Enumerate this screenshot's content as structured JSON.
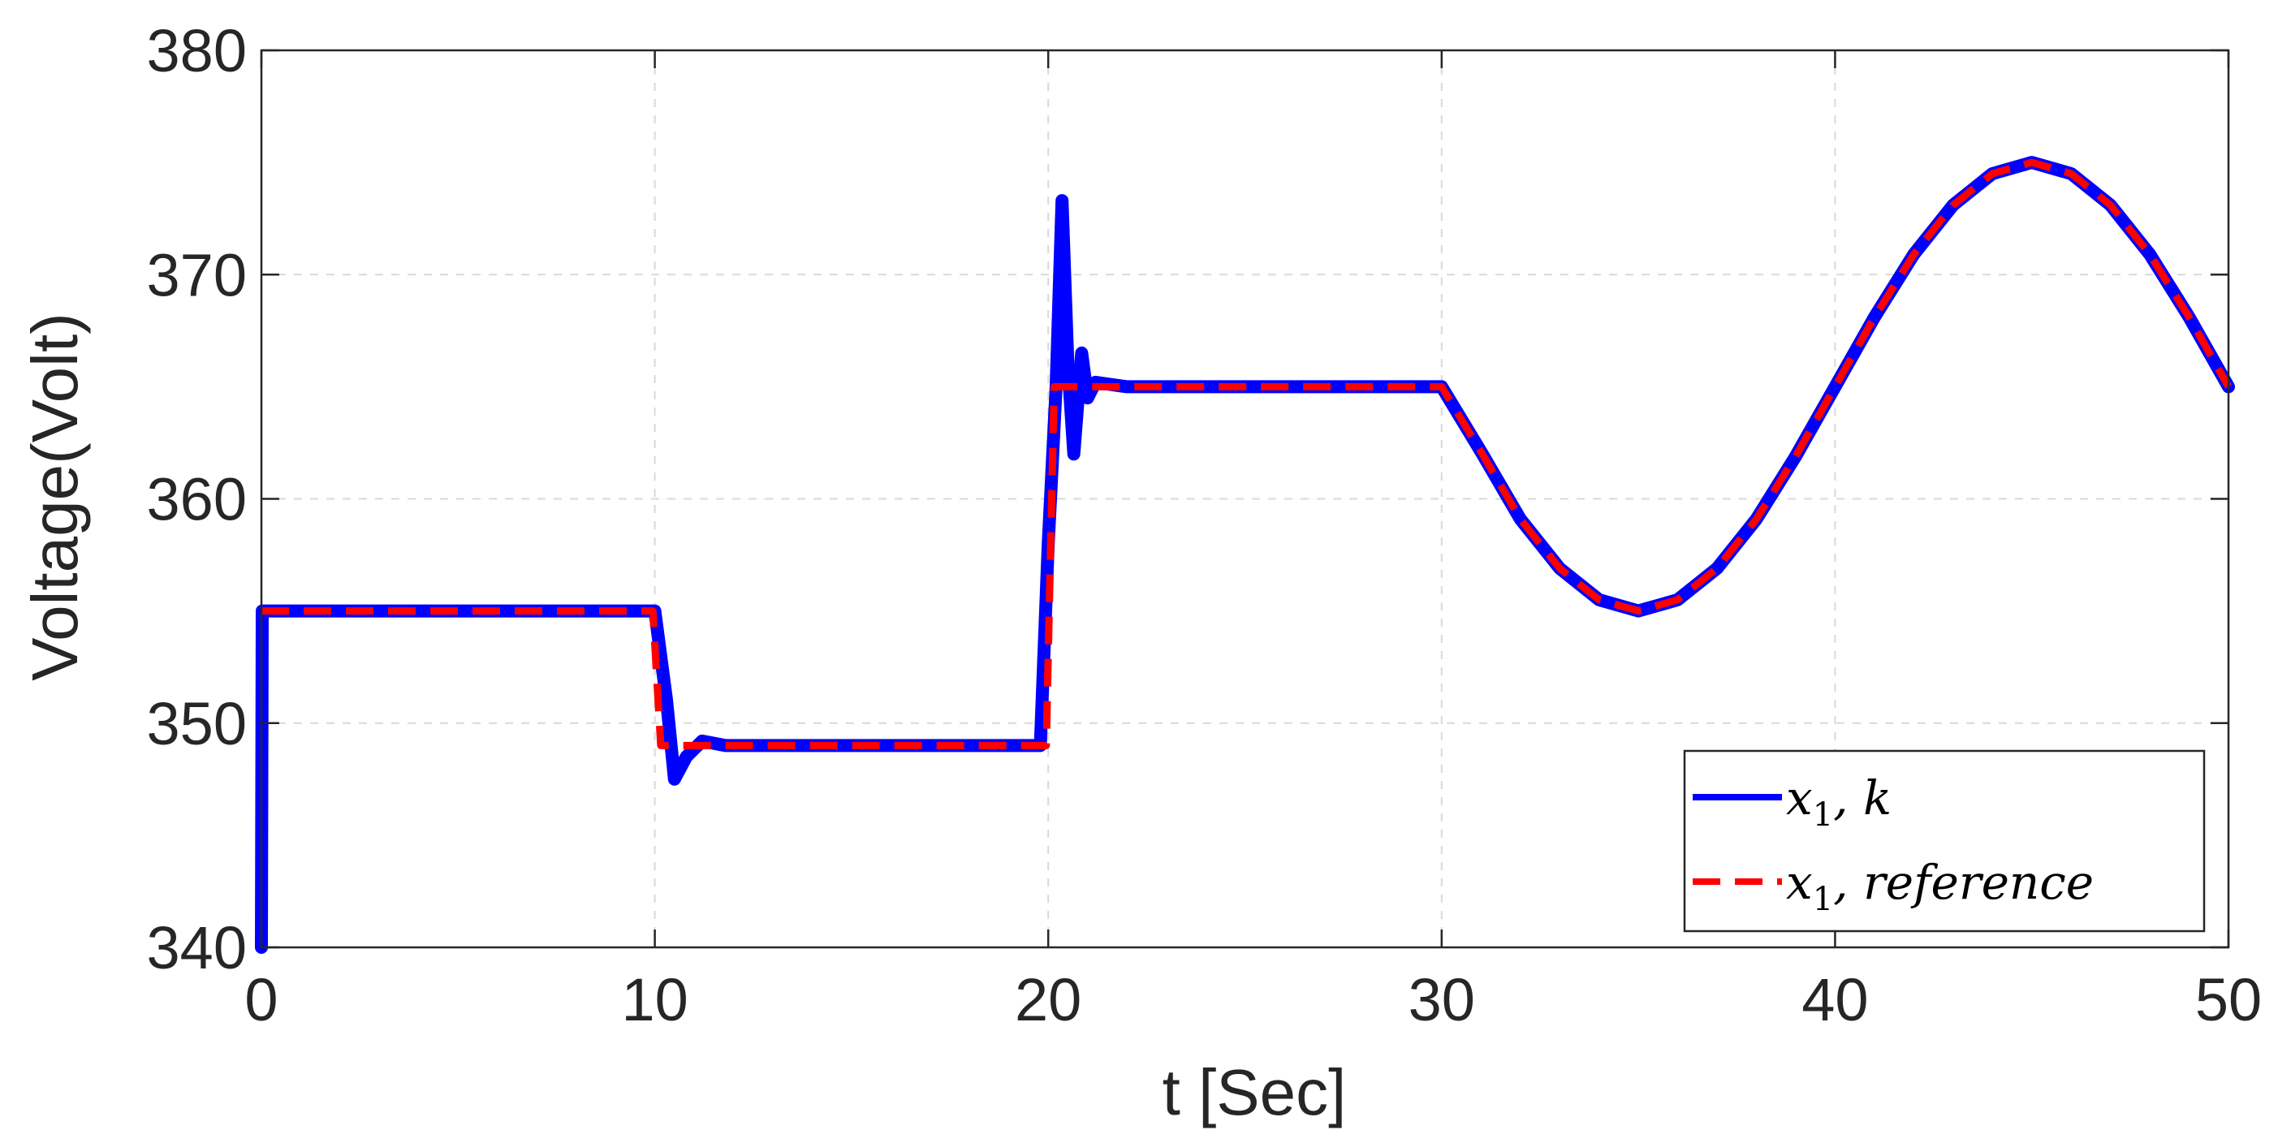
{
  "chart_data": {
    "type": "line",
    "title": "",
    "xlabel": "t [Sec]",
    "ylabel": "Voltage(Volt)",
    "xlim": [
      0,
      50
    ],
    "ylim": [
      340,
      380
    ],
    "xticks": [
      "0",
      "10",
      "20",
      "30",
      "40",
      "50"
    ],
    "yticks": [
      "340",
      "350",
      "360",
      "370",
      "380"
    ],
    "grid": true,
    "legend_position": "bottom-right",
    "series": [
      {
        "name": "x_1, k",
        "legend_base": "x",
        "legend_sub": "1",
        "legend_rest": ", k",
        "color": "#0000ff",
        "style": "solid",
        "x": [
          0,
          0.02,
          0.1,
          9.9,
          10.0,
          10.3,
          10.5,
          10.8,
          11.2,
          11.8,
          19.8,
          20.0,
          20.2,
          20.35,
          20.5,
          20.65,
          20.85,
          21.0,
          21.2,
          22,
          30,
          31,
          32,
          33,
          34,
          35,
          36,
          37,
          38,
          39,
          40,
          41,
          42,
          43,
          44,
          45,
          46,
          47,
          48,
          49,
          50
        ],
        "y": [
          340,
          355,
          355,
          355,
          355,
          351,
          347.5,
          348.5,
          349.2,
          349,
          349,
          358,
          365,
          373.3,
          366,
          362,
          366.5,
          364.5,
          365.2,
          365,
          365,
          362.1,
          359.1,
          356.9,
          355.5,
          355,
          355.5,
          356.9,
          359.1,
          361.9,
          365,
          368.1,
          370.9,
          373.1,
          374.5,
          375,
          374.5,
          373.1,
          370.9,
          368.1,
          365
        ]
      },
      {
        "name": "x_1, reference",
        "legend_base": "x",
        "legend_sub": "1",
        "legend_rest": ", reference",
        "color": "#ff0000",
        "style": "dashed",
        "x": [
          0,
          9.95,
          10.05,
          10.15,
          19.95,
          20.05,
          20.15,
          30,
          31,
          32,
          33,
          34,
          35,
          36,
          37,
          38,
          39,
          40,
          41,
          42,
          43,
          44,
          45,
          46,
          47,
          48,
          49,
          50
        ],
        "y": [
          355,
          355,
          352,
          349,
          349,
          357,
          365,
          365,
          362.1,
          359.1,
          356.9,
          355.5,
          355,
          355.5,
          356.9,
          359.1,
          361.9,
          365,
          368.1,
          370.9,
          373.1,
          374.5,
          375,
          374.5,
          373.1,
          370.9,
          368.1,
          365
        ]
      }
    ]
  }
}
